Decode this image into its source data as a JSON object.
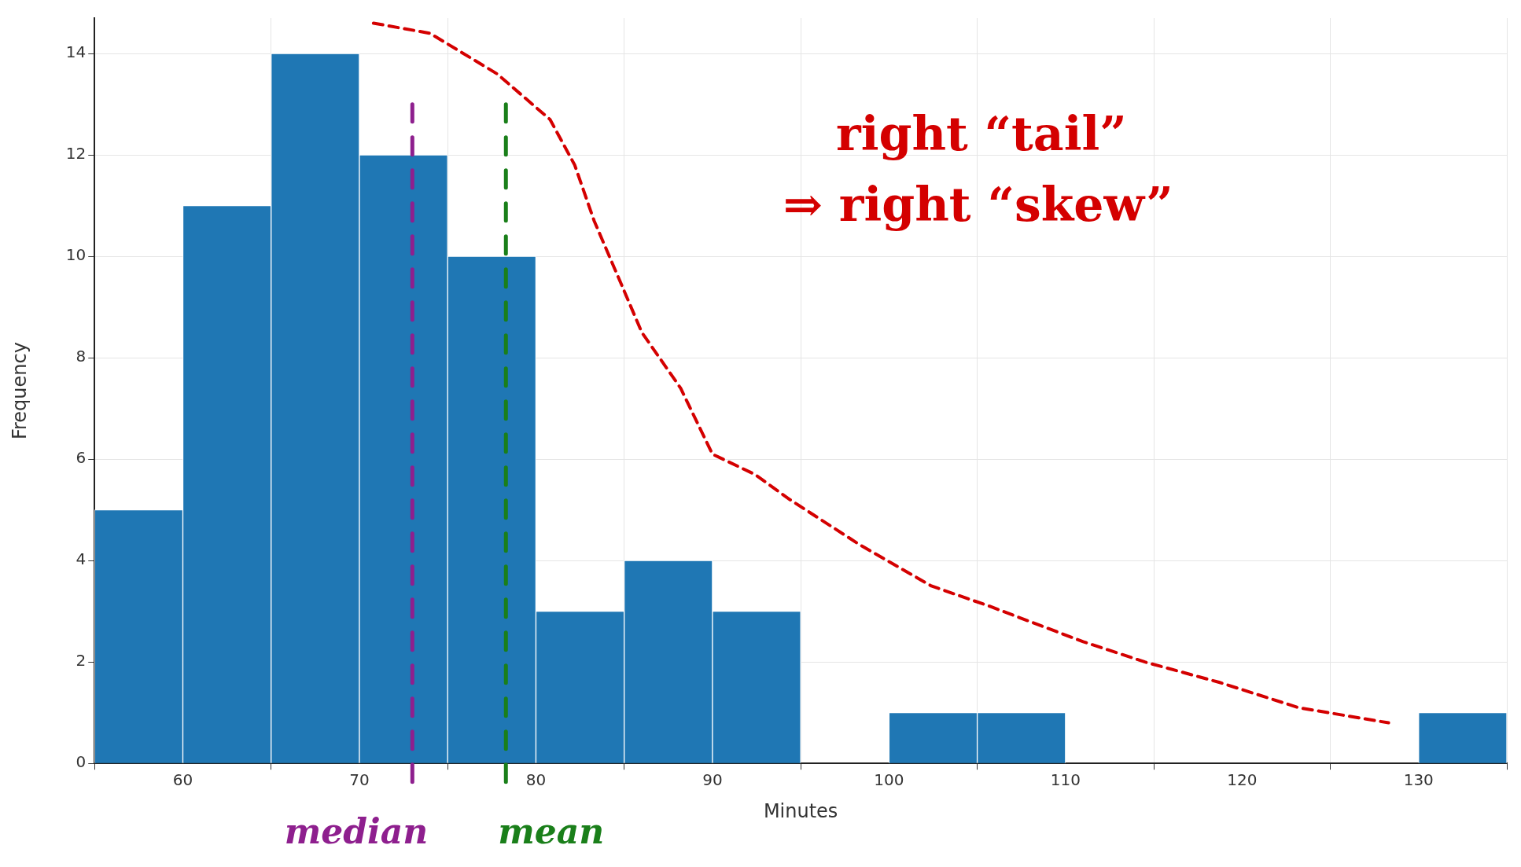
{
  "chart_data": {
    "type": "histogram",
    "xlabel": "Minutes",
    "ylabel": "Frequency",
    "bins": [
      55,
      60,
      65,
      70,
      75,
      80,
      85,
      90,
      95,
      100,
      105,
      110,
      115,
      120,
      125,
      130,
      135
    ],
    "values": [
      5,
      11,
      14,
      12,
      10,
      3,
      4,
      3,
      0,
      1,
      1,
      0,
      0,
      0,
      0,
      1
    ],
    "color": "#1f77b4",
    "series": [
      {
        "type": "line",
        "color": "#d40000",
        "line_style": "dashed",
        "marker": "none",
        "x": [
          70.8,
          74,
          77.8,
          80.8,
          82.2,
          83.3,
          84.9,
          86,
          88.2,
          90,
          92.4,
          94.4,
          98.4,
          102.4,
          105.7,
          111,
          114.5,
          118.7,
          123.2,
          128.3
        ],
        "values": [
          14.6,
          14.4,
          13.6,
          12.7,
          11.8,
          10.7,
          9.4,
          8.5,
          7.4,
          6.1,
          5.7,
          5.2,
          4.3,
          3.5,
          3.1,
          2.4,
          2,
          1.6,
          1.1,
          0.8
        ]
      }
    ],
    "xlim": [
      55,
      135
    ],
    "xticks": [
      60,
      70,
      80,
      90,
      100,
      110,
      120,
      130
    ],
    "ylim": [
      0,
      14.7
    ],
    "yticks": [
      0,
      2,
      4,
      6,
      8,
      10,
      12,
      14
    ],
    "grid": true,
    "legend": false,
    "ref_lines": [
      {
        "axis": "x",
        "value": 73,
        "label": "median",
        "color": "#8e1f8e",
        "line_style": "dashed"
      },
      {
        "axis": "x",
        "value": 78.3,
        "label": "mean",
        "color": "#1a7f1a",
        "line_style": "dashed"
      }
    ],
    "annotations": [
      "right “tail”",
      "⇒ right “skew”"
    ]
  }
}
